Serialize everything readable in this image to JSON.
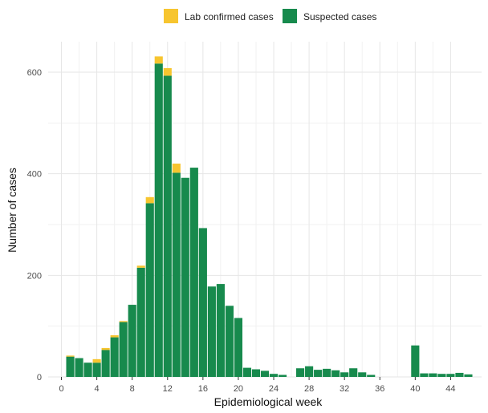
{
  "chart_data": {
    "type": "bar",
    "stacked": true,
    "xlabel": "Epidemiological week",
    "ylabel": "Number of cases",
    "xlim": [
      -1.5,
      47.5
    ],
    "ylim": [
      0,
      660
    ],
    "x_ticks": [
      0,
      4,
      8,
      12,
      16,
      20,
      24,
      28,
      32,
      36,
      40,
      44
    ],
    "y_ticks": [
      0,
      200,
      400,
      600
    ],
    "grid": true,
    "legend_position": "top",
    "legend": [
      {
        "label": "Lab confirmed cases",
        "color": "#F7C52F"
      },
      {
        "label": "Suspected cases",
        "color": "#178A4D"
      }
    ],
    "weeks": [
      1,
      2,
      3,
      4,
      5,
      6,
      7,
      8,
      9,
      10,
      11,
      12,
      13,
      14,
      15,
      16,
      17,
      18,
      19,
      20,
      21,
      22,
      23,
      24,
      25,
      27,
      28,
      29,
      30,
      31,
      32,
      33,
      34,
      35,
      40,
      41,
      42,
      43,
      44,
      45,
      46
    ],
    "series": [
      {
        "name": "Suspected cases",
        "color": "#178A4D",
        "values": [
          40,
          37,
          28,
          28,
          53,
          78,
          108,
          142,
          215,
          342,
          617,
          593,
          402,
          392,
          412,
          293,
          178,
          183,
          140,
          116,
          18,
          15,
          12,
          6,
          4,
          17,
          21,
          14,
          16,
          13,
          9,
          17,
          9,
          4,
          62,
          7,
          7,
          6,
          6,
          8,
          5
        ]
      },
      {
        "name": "Lab confirmed cases",
        "color": "#F7C52F",
        "values": [
          2,
          0,
          0,
          7,
          4,
          4,
          2,
          0,
          4,
          12,
          14,
          15,
          18,
          0,
          0,
          0,
          0,
          0,
          0,
          0,
          0,
          0,
          0,
          0,
          0,
          0,
          0,
          0,
          0,
          0,
          0,
          0,
          0,
          0,
          0,
          0,
          0,
          0,
          0,
          0,
          0
        ]
      }
    ]
  }
}
